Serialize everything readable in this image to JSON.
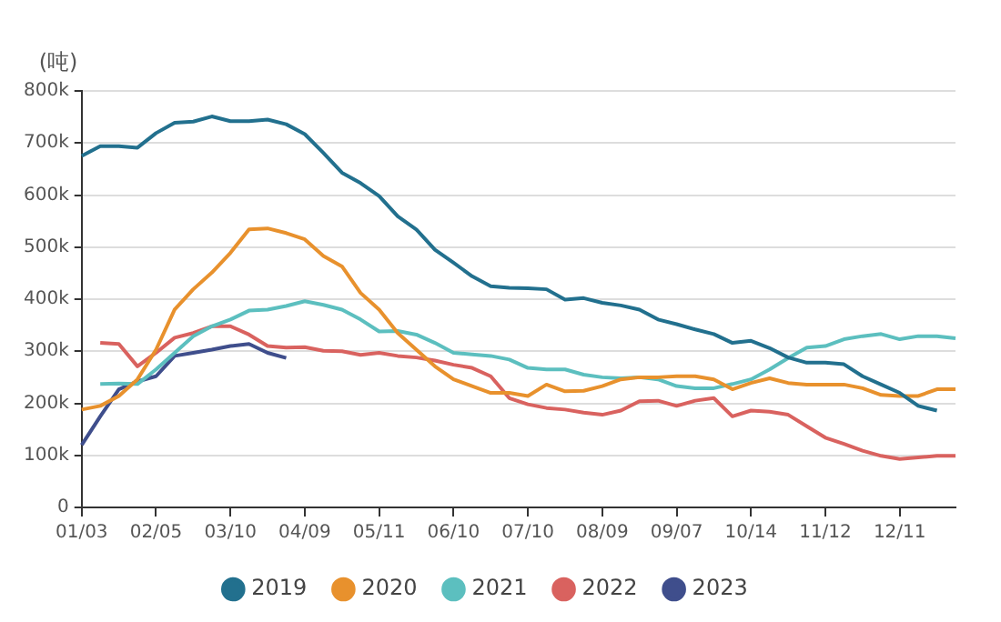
{
  "chart_data": {
    "type": "line",
    "ylabel": "(吨)",
    "categories": [
      "01/03",
      null,
      null,
      null,
      "02/05",
      null,
      null,
      null,
      "03/10",
      null,
      null,
      null,
      "04/09",
      null,
      null,
      null,
      "05/11",
      null,
      null,
      null,
      "06/10",
      null,
      null,
      null,
      "07/10",
      null,
      null,
      null,
      "08/09",
      null,
      null,
      null,
      "09/07",
      null,
      null,
      null,
      "10/14",
      null,
      null,
      null,
      "11/12",
      null,
      null,
      null,
      "12/11",
      null,
      null,
      null
    ],
    "series": [
      {
        "name": "2019",
        "color": "#22708e",
        "values": [
          675000,
          694000,
          694000,
          691000,
          719000,
          739000,
          741000,
          751000,
          742000,
          742000,
          745000,
          736000,
          717000,
          681000,
          643000,
          623000,
          598000,
          559000,
          534000,
          495000,
          470000,
          444000,
          425000,
          422000,
          421000,
          419000,
          399000,
          402000,
          393000,
          388000,
          380000,
          361000,
          352000,
          342000,
          333000,
          316000,
          320000,
          306000,
          288000,
          278000,
          278000,
          275000,
          252000,
          236000,
          220000,
          195000,
          186000,
          null
        ]
      },
      {
        "name": "2020",
        "color": "#e8912d",
        "values": [
          188000,
          195000,
          214000,
          246000,
          303000,
          380000,
          419000,
          451000,
          489000,
          534000,
          536000,
          527000,
          515000,
          483000,
          463000,
          412000,
          380000,
          335000,
          303000,
          271000,
          246000,
          233000,
          220000,
          220000,
          214000,
          236000,
          223000,
          224000,
          233000,
          246000,
          250000,
          250000,
          252000,
          252000,
          246000,
          227000,
          239000,
          248000,
          239000,
          236000,
          236000,
          236000,
          229000,
          216000,
          214000,
          214000,
          227000,
          227000
        ]
      },
      {
        "name": "2021",
        "color": "#5cbfbf",
        "values": [
          null,
          237000,
          238000,
          237000,
          265000,
          297000,
          329000,
          348000,
          361000,
          378000,
          380000,
          387000,
          396000,
          389000,
          380000,
          361000,
          338000,
          339000,
          332000,
          316000,
          297000,
          294000,
          291000,
          284000,
          268000,
          265000,
          265000,
          255000,
          250000,
          248000,
          250000,
          246000,
          233000,
          229000,
          229000,
          237000,
          246000,
          265000,
          287000,
          307000,
          310000,
          323000,
          329000,
          333000,
          323000,
          329000,
          329000,
          325000
        ]
      },
      {
        "name": "2022",
        "color": "#d9625f",
        "values": [
          null,
          316000,
          314000,
          271000,
          297000,
          326000,
          335000,
          348000,
          348000,
          332000,
          310000,
          307000,
          308000,
          301000,
          300000,
          293000,
          297000,
          291000,
          288000,
          282000,
          274000,
          268000,
          252000,
          210000,
          198000,
          191000,
          188000,
          182000,
          178000,
          186000,
          204000,
          205000,
          195000,
          205000,
          210000,
          175000,
          186000,
          184000,
          178000,
          156000,
          134000,
          122000,
          109000,
          99000,
          93000,
          96000,
          99000,
          99000
        ]
      },
      {
        "name": "2023",
        "color": "#3f4e8c",
        "values": [
          120000,
          175000,
          227000,
          242000,
          252000,
          291000,
          297000,
          303000,
          310000,
          314000,
          297000,
          287000,
          null,
          null,
          null,
          null,
          null,
          null,
          null,
          null,
          null,
          null,
          null,
          null,
          null,
          null,
          null,
          null,
          null,
          null,
          null,
          null,
          null,
          null,
          null,
          null,
          null,
          null,
          null,
          null,
          null,
          null,
          null,
          null,
          null,
          null,
          null,
          null
        ]
      }
    ],
    "ylim": [
      0,
      800000
    ],
    "yticks": [
      0,
      {
        "value": 100000,
        "label": "100k"
      },
      {
        "value": 200000,
        "label": "200k"
      },
      {
        "value": 300000,
        "label": "300k"
      },
      {
        "value": 400000,
        "label": "400k"
      },
      {
        "value": 500000,
        "label": "500k"
      },
      {
        "value": 600000,
        "label": "600k"
      },
      {
        "value": 700000,
        "label": "700k"
      },
      {
        "value": 800000,
        "label": "800k"
      }
    ],
    "grid": "y",
    "legend": "bottom",
    "marker": "none",
    "line_style": "solid"
  }
}
